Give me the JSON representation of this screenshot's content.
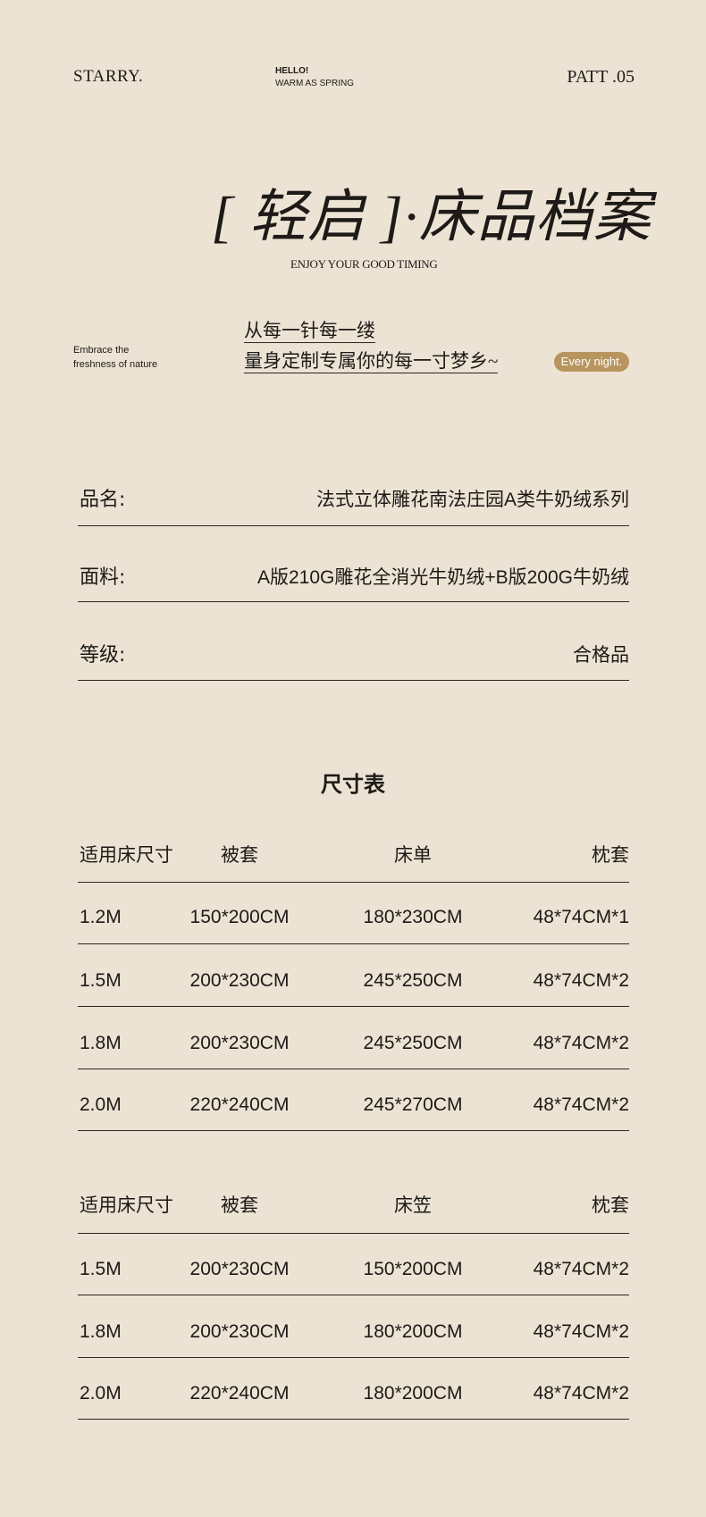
{
  "header": {
    "brand": "STARRY.",
    "hello": "HELLO!",
    "tagline": "WARM AS SPRING",
    "pattern": "PATT .05"
  },
  "title": {
    "main": "[ 轻启 ]·床品档案",
    "subtitle": "ENJOY YOUR GOOD TIMING"
  },
  "slogan": {
    "left_line1": "Embrace the",
    "left_line2": "freshness of nature",
    "line1": "从每一针每一缕",
    "line2": "量身定制专属你的每一寸梦乡~",
    "badge": "Every night.",
    "badge_color": "#b8955e"
  },
  "info": [
    {
      "label": "品名:",
      "value": "法式立体雕花南法庄园A类牛奶绒系列"
    },
    {
      "label": "面料:",
      "value": "A版210G雕花全消光牛奶绒+B版200G牛奶绒"
    },
    {
      "label": "等级:",
      "value": "合格品"
    }
  ],
  "size_table_title": "尺寸表",
  "table1": {
    "headers": [
      "适用床尺寸",
      "被套",
      "床单",
      "枕套"
    ],
    "rows": [
      [
        "1.2M",
        "150*200CM",
        "180*230CM",
        "48*74CM*1"
      ],
      [
        "1.5M",
        "200*230CM",
        "245*250CM",
        "48*74CM*2"
      ],
      [
        "1.8M",
        "200*230CM",
        "245*250CM",
        "48*74CM*2"
      ],
      [
        "2.0M",
        "220*240CM",
        "245*270CM",
        "48*74CM*2"
      ]
    ]
  },
  "table2": {
    "headers": [
      "适用床尺寸",
      "被套",
      "床笠",
      "枕套"
    ],
    "rows": [
      [
        "1.5M",
        "200*230CM",
        "150*200CM",
        "48*74CM*2"
      ],
      [
        "1.8M",
        "200*230CM",
        "180*200CM",
        "48*74CM*2"
      ],
      [
        "2.0M",
        "220*240CM",
        "180*200CM",
        "48*74CM*2"
      ]
    ]
  }
}
